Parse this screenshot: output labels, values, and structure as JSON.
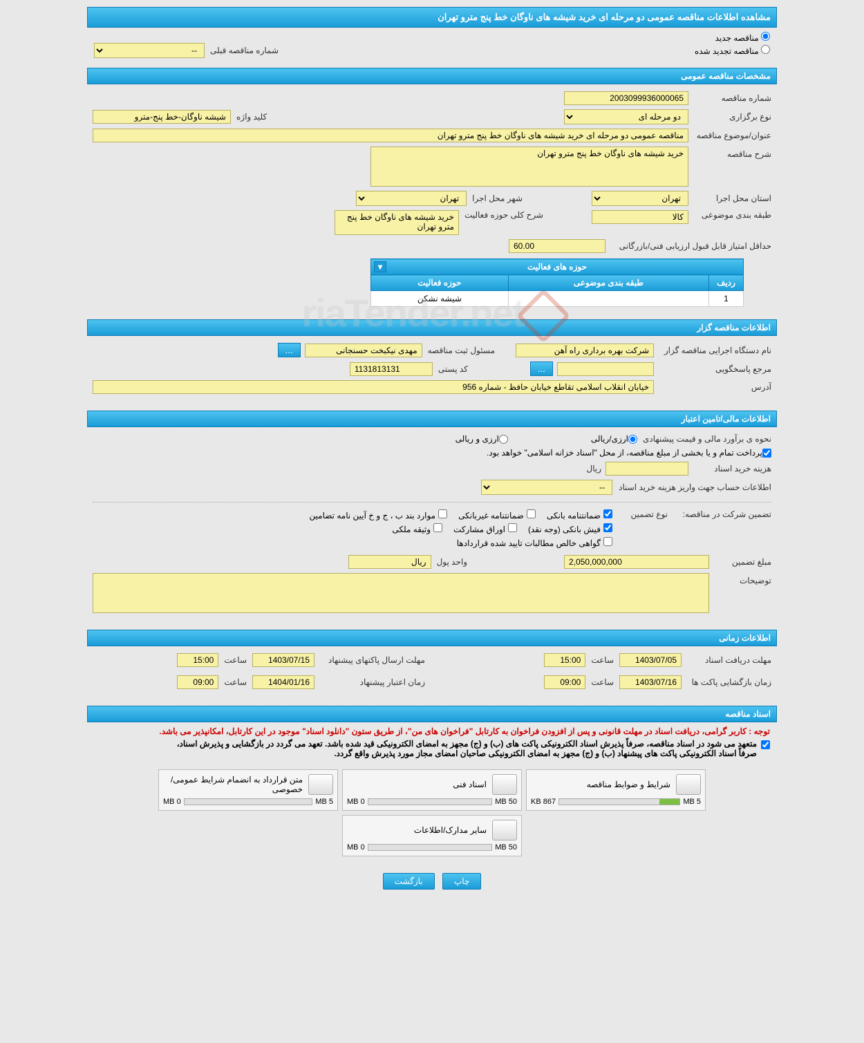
{
  "header": {
    "title": "مشاهده اطلاعات مناقصه عمومی دو مرحله ای خرید شیشه های ناوگان خط پنج مترو تهران"
  },
  "top_radios": {
    "new_label": "مناقصه جدید",
    "renewed_label": "مناقصه تجدید شده",
    "prev_number_label": "شماره مناقصه قبلی",
    "prev_number_value": "--"
  },
  "sections": {
    "general_spec": "مشخصات مناقصه عمومی",
    "activity_fields": "حوزه های فعالیت",
    "organizer_info": "اطلاعات مناقصه گزار",
    "financial": "اطلاعات مالی/تامین اعتبار",
    "timing": "اطلاعات زمانی",
    "documents": "اسناد مناقصه"
  },
  "general": {
    "tender_number_label": "شماره مناقصه",
    "tender_number": "2003099936000065",
    "type_label": "نوع برگزاری",
    "type_value": "دو مرحله ای",
    "keyword_label": "کلید واژه",
    "keyword_value": "شیشه ناوگان-خط پنج-مترو",
    "title_label": "عنوان/موضوع مناقصه",
    "title_value": "مناقصه عمومی دو مرحله ای خرید شیشه های ناوگان خط پنج مترو تهران",
    "desc_label": "شرح مناقصه",
    "desc_value": "خرید شیشه های ناوگان خط پنج مترو تهران",
    "province_label": "استان محل اجرا",
    "province_value": "تهران",
    "city_label": "شهر محل اجرا",
    "city_value": "تهران",
    "category_label": "طبقه بندی موضوعی",
    "category_value": "کالا",
    "activity_desc_label": "شرح کلی حوزه فعالیت",
    "activity_desc_value": "خرید شیشه های ناوگان خط پنج مترو تهران",
    "min_score_label": "حداقل امتیاز قابل قبول ارزیابی فنی/بازرگانی",
    "min_score_value": "60.00"
  },
  "activity_table": {
    "col_row": "ردیف",
    "col_category": "طبقه بندی موضوعی",
    "col_field": "حوزه فعالیت",
    "rows": [
      {
        "n": "1",
        "category": "",
        "field": "شیشه نشکن"
      }
    ]
  },
  "organizer": {
    "exec_name_label": "نام دستگاه اجرایی مناقصه گزار",
    "exec_name_value": "شرکت بهره برداری راه آهن",
    "reg_officer_label": "مسئول ثبت مناقصه",
    "reg_officer_value": "مهدی نیکبخت حسنجانی",
    "responder_label": "مرجع پاسخگویی",
    "responder_value": "",
    "postal_label": "کد پستی",
    "postal_value": "1131813131",
    "address_label": "آدرس",
    "address_value": "خیابان انقلاب اسلامی تقاطع خیابان حافظ - شماره 956"
  },
  "financial": {
    "estimate_method_label": "نحوه ی برآورد مالی و قیمت پیشنهادی",
    "opt_rial": "ارزی/ریالی",
    "opt_foreign": "ارزی و ریالی",
    "source_note": "پرداخت تمام و یا بخشی از مبلغ مناقصه، از محل \"اسناد خزانه اسلامی\" خواهد بود.",
    "doc_fee_label": "هزینه خرید اسناد",
    "doc_fee_value": "",
    "doc_fee_unit": "ریال",
    "account_info_label": "اطلاعات حساب جهت واریز هزینه خرید اسناد",
    "account_info_value": "--",
    "participation_label": "تضمین شرکت در مناقصه:",
    "guarantee_type_label": "نوع تضمین",
    "gt_bank": "ضمانتنامه بانکی",
    "gt_nonbank": "ضمانتنامه غیربانکی",
    "gt_clauses": "موارد بند ب ، ج و خ آیین نامه تضامین",
    "gt_cash": "فیش بانکی (وجه نقد)",
    "gt_securities": "اوراق مشارکت",
    "gt_deposit": "وثیقه ملکی",
    "gt_certificate": "گواهی خالص مطالبات تایید شده قراردادها",
    "guarantee_amount_label": "مبلغ تضمین",
    "guarantee_amount_value": "2,050,000,000",
    "currency_unit_label": "واحد پول",
    "currency_unit_value": "ریال",
    "notes_label": "توضیحات",
    "notes_value": ""
  },
  "timing": {
    "receive_deadline_label": "مهلت دریافت اسناد",
    "receive_deadline_date": "1403/07/05",
    "receive_deadline_time_label": "ساعت",
    "receive_deadline_time": "15:00",
    "submit_deadline_label": "مهلت ارسال پاکتهای پیشنهاد",
    "submit_deadline_date": "1403/07/15",
    "submit_deadline_time": "15:00",
    "opening_label": "زمان بازگشایی پاکت ها",
    "opening_date": "1403/07/16",
    "opening_time": "09:00",
    "validity_label": "زمان اعتبار پیشنهاد",
    "validity_date": "1404/01/16",
    "validity_time": "09:00"
  },
  "notices": {
    "red": "توجه : کاربر گرامی، دریافت اسناد در مهلت قانونی و پس از افزودن فراخوان به کارتابل \"فراخوان های من\"، از طریق ستون \"دانلود اسناد\" موجود در این کارتابل، امکانپذیر می باشد.",
    "black1": "متعهد می شود در اسناد مناقصه، صرفاً پذیرش اسناد الکترونیکی پاکت های (ب) و (ج) مجهز به امضای الکترونیکی قید شده باشد. تعهد می گردد در بازگشایی و پذیرش اسناد،",
    "black2": "صرفاً اسناد الکترونیکی پاکت های پیشنهاد (ب) و (ج) مجهز به امضای الکترونیکی صاحبان امضای مجاز مورد پذیرش واقع گردد."
  },
  "documents": [
    {
      "title": "شرایط و ضوابط مناقصه",
      "used": "867 KB",
      "total": "5 MB",
      "pct": 17
    },
    {
      "title": "اسناد فنی",
      "used": "0 MB",
      "total": "50 MB",
      "pct": 0
    },
    {
      "title": "متن قرارداد به انضمام شرایط عمومی/خصوصی",
      "used": "0 MB",
      "total": "5 MB",
      "pct": 0
    },
    {
      "title": "سایر مدارک/اطلاعات",
      "used": "0 MB",
      "total": "50 MB",
      "pct": 0
    }
  ],
  "buttons": {
    "print": "چاپ",
    "back": "بازگشت"
  },
  "watermark": "riaTender.net"
}
